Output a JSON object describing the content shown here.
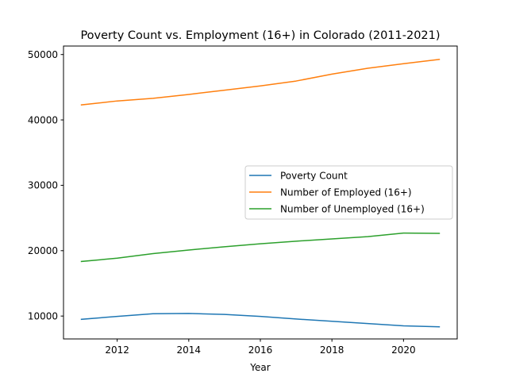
{
  "chart_data": {
    "type": "line",
    "title": "Poverty Count vs. Employment (16+) in Colorado (2011-2021)",
    "xlabel": "Year",
    "ylabel": "",
    "x": [
      2011,
      2012,
      2013,
      2014,
      2015,
      2016,
      2017,
      2018,
      2019,
      2020,
      2021
    ],
    "xlim": [
      2010.5,
      2021.5
    ],
    "ylim": [
      6500,
      51300
    ],
    "x_ticks": [
      2012,
      2014,
      2016,
      2018,
      2020
    ],
    "x_tick_labels": [
      "2012",
      "2014",
      "2016",
      "2018",
      "2020"
    ],
    "y_ticks": [
      10000,
      20000,
      30000,
      40000,
      50000
    ],
    "y_tick_labels": [
      "10000",
      "20000",
      "30000",
      "40000",
      "50000"
    ],
    "grid": false,
    "legend_position": "center-right",
    "series": [
      {
        "name": "Poverty Count",
        "color": "#1f77b4",
        "values": [
          9500,
          9950,
          10350,
          10400,
          10250,
          9950,
          9550,
          9200,
          8850,
          8500,
          8350
        ]
      },
      {
        "name": "Number of Employed (16+)",
        "color": "#ff7f0e",
        "values": [
          42300,
          42900,
          43300,
          43900,
          44550,
          45200,
          45950,
          47000,
          47900,
          48600,
          49250
        ]
      },
      {
        "name": "Number of Unemployed (16+)",
        "color": "#2ca02c",
        "values": [
          18350,
          18850,
          19550,
          20100,
          20600,
          21050,
          21450,
          21800,
          22150,
          22700,
          22650
        ]
      }
    ]
  }
}
